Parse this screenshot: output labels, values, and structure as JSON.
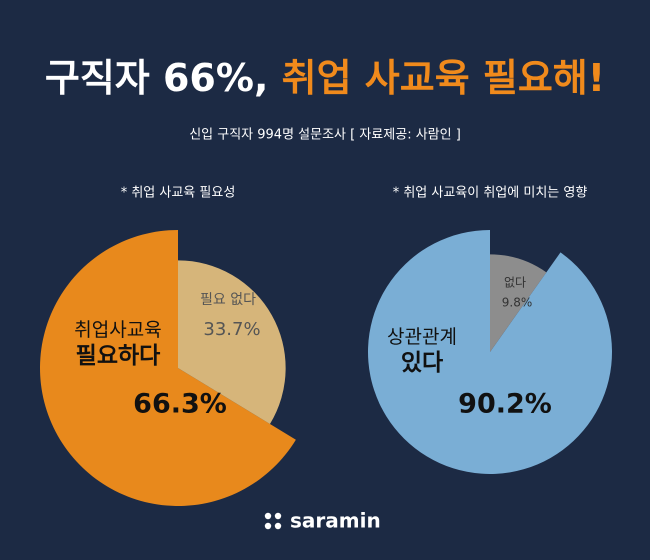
{
  "header": {
    "title_part1": "구직자 66%,",
    "title_part2": "취업 사교육 필요해!",
    "subtitle": "신입 구직자 994명 설문조사 [ 자료제공: 사람인 ]"
  },
  "chart_data": [
    {
      "type": "pie",
      "title": "* 취업 사교육 필요성",
      "categories": [
        "취업사교육 필요하다",
        "필요 없다"
      ],
      "values": [
        66.3,
        33.7
      ],
      "value_labels": [
        "66.3%",
        "33.7%"
      ],
      "colors": [
        "#e8891c",
        "#d6b57a"
      ]
    },
    {
      "type": "pie",
      "title": "* 취업 사교육이 취업에 미치는 영향",
      "categories": [
        "상관관계 있다",
        "없다"
      ],
      "values": [
        90.2,
        9.8
      ],
      "value_labels": [
        "90.2%",
        "9.8%"
      ],
      "colors": [
        "#7aaed5",
        "#8d8d8d"
      ]
    }
  ],
  "footer": {
    "logo": "saramin"
  }
}
